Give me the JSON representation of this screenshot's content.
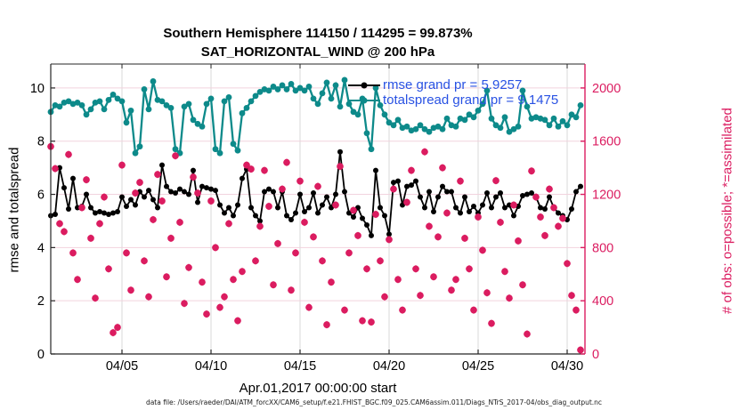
{
  "title": {
    "line1": "Southern Hemisphere 114150 / 114295 = 99.873%",
    "line2": "SAT_HORIZONTAL_WIND @ 200 hPa"
  },
  "legend": [
    {
      "label": "rmse grand pr = 5.9257",
      "series": "rmse"
    },
    {
      "label": "totalspread grand pr = 9.1475",
      "series": "totalspread"
    }
  ],
  "footer": "data file: /Users/raeder/DAI/ATM_forcXX/CAM6_setup/f.e21.FHIST_BGC.f09_025.CAM6assim.011/Diags_NTrS_2017-04/obs_diag_output.nc",
  "colors": {
    "rmse_line": "#000000",
    "totalspread_line": "#0d8a8a",
    "obs_pink": "#db1c60",
    "legend_text_blue": "#2952e3",
    "grid_vertical": "#d8d8d8",
    "grid_horizontal": "#f2d3de",
    "axis_black": "#262626"
  },
  "chart_data": {
    "type": "line",
    "title": "Southern Hemisphere 114150 / 114295 = 99.873%",
    "subtitle": "SAT_HORIZONTAL_WIND @ 200 hPa",
    "x_axis": {
      "label": "Apr.01,2017 00:00:00 start",
      "tick_labels": [
        "04/05",
        "04/10",
        "04/15",
        "04/20",
        "04/25",
        "04/30"
      ],
      "tick_days": [
        4,
        9,
        14,
        19,
        24,
        29
      ],
      "range_days": [
        0,
        30
      ],
      "step_days": 0.25
    },
    "y_left": {
      "label": "rmse and totalspread",
      "ticks": [
        0,
        2,
        4,
        6,
        8,
        10
      ],
      "range": [
        0,
        10.9
      ]
    },
    "y_right": {
      "label": "# of obs: o=possible; *=assimilated",
      "ticks": [
        0,
        400,
        800,
        1200,
        1600,
        2000
      ],
      "range": [
        0,
        2180
      ]
    },
    "grid": true,
    "legend_position": "top-right-inside",
    "series": [
      {
        "name": "rmse",
        "axis": "left",
        "marker": "filled-circle",
        "grand_mean": 5.9257,
        "values": [
          5.2,
          5.25,
          7.0,
          6.25,
          5.45,
          6.6,
          5.5,
          5.55,
          6.0,
          5.5,
          5.3,
          5.35,
          5.3,
          5.25,
          5.3,
          5.35,
          5.9,
          5.55,
          5.8,
          5.6,
          6.1,
          5.9,
          6.15,
          5.8,
          5.5,
          7.1,
          6.3,
          6.1,
          6.05,
          6.2,
          6.1,
          6.0,
          6.9,
          5.7,
          6.3,
          6.25,
          6.2,
          6.15,
          5.6,
          5.3,
          5.5,
          5.2,
          5.6,
          6.6,
          6.95,
          5.5,
          5.2,
          5.0,
          6.1,
          6.2,
          6.1,
          5.5,
          6.1,
          5.2,
          5.05,
          5.3,
          6.0,
          5.35,
          5.5,
          6.05,
          5.3,
          5.6,
          5.9,
          5.5,
          6.0,
          7.6,
          6.1,
          5.3,
          5.15,
          5.5,
          5.1,
          4.85,
          4.45,
          6.9,
          5.5,
          5.2,
          4.5,
          6.45,
          6.5,
          5.6,
          6.3,
          6.35,
          6.5,
          5.9,
          5.5,
          6.1,
          5.35,
          5.9,
          6.3,
          6.1,
          6.1,
          5.5,
          5.3,
          5.9,
          5.35,
          5.55,
          5.3,
          5.6,
          6.05,
          5.5,
          5.9,
          6.05,
          5.5,
          5.6,
          5.2,
          5.55,
          5.95,
          6.0,
          6.05,
          5.9,
          5.5,
          5.45,
          5.9,
          5.5,
          5.3,
          5.2,
          5.05,
          5.45,
          6.1,
          6.3
        ]
      },
      {
        "name": "totalspread",
        "axis": "left",
        "marker": "filled-circle",
        "grand_mean": 9.1475,
        "values": [
          9.1,
          9.35,
          9.3,
          9.45,
          9.5,
          9.4,
          9.45,
          9.35,
          9.0,
          9.2,
          9.45,
          9.5,
          9.2,
          9.55,
          9.75,
          9.6,
          9.5,
          8.7,
          9.15,
          7.55,
          7.8,
          9.95,
          9.2,
          10.25,
          9.55,
          9.5,
          9.35,
          9.25,
          7.7,
          7.55,
          9.3,
          9.4,
          8.8,
          8.65,
          8.55,
          9.4,
          9.6,
          7.7,
          7.55,
          9.5,
          9.65,
          7.9,
          7.65,
          9.05,
          9.25,
          9.5,
          9.7,
          9.85,
          9.95,
          9.9,
          10.05,
          9.95,
          10.1,
          9.95,
          10.15,
          9.9,
          10.0,
          9.9,
          10.05,
          9.6,
          9.4,
          9.8,
          10.2,
          9.6,
          10.1,
          9.3,
          10.3,
          9.4,
          9.1,
          9.0,
          9.6,
          8.3,
          7.7,
          10.0,
          9.35,
          9.0,
          8.7,
          8.6,
          8.8,
          8.5,
          8.55,
          8.4,
          8.45,
          8.6,
          8.45,
          8.35,
          8.5,
          8.55,
          8.45,
          8.85,
          8.6,
          8.55,
          8.85,
          8.8,
          9.0,
          8.9,
          9.15,
          9.4,
          9.9,
          8.85,
          8.6,
          8.5,
          8.9,
          8.35,
          8.45,
          8.55,
          9.9,
          9.3,
          8.85,
          8.9,
          8.85,
          8.8,
          8.6,
          8.85,
          8.55,
          8.75,
          8.6,
          9.0,
          8.9,
          9.35
        ]
      },
      {
        "name": "obs_assimilated",
        "axis": "right",
        "marker": "asterisk",
        "values": [
          1560,
          1394,
          980,
          920,
          1500,
          760,
          560,
          1100,
          1310,
          870,
          420,
          980,
          1180,
          640,
          160,
          200,
          1420,
          760,
          480,
          1210,
          1290,
          700,
          430,
          1010,
          1350,
          1150,
          580,
          870,
          1490,
          990,
          380,
          650,
          1330,
          1210,
          540,
          300,
          1150,
          800,
          350,
          430,
          980,
          560,
          250,
          620,
          1420,
          1390,
          700,
          960,
          1380,
          1110,
          520,
          830,
          1240,
          1440,
          480,
          760,
          1300,
          990,
          350,
          880,
          1260,
          700,
          220,
          540,
          1120,
          1410,
          330,
          760,
          1080,
          890,
          250,
          640,
          240,
          1050,
          700,
          430,
          860,
          1240,
          560,
          330,
          1140,
          1380,
          640,
          440,
          1520,
          960,
          580,
          880,
          1400,
          1060,
          480,
          560,
          1300,
          870,
          640,
          330,
          1030,
          780,
          460,
          230,
          1303,
          990,
          620,
          420,
          1120,
          850,
          520,
          150,
          1376,
          1180,
          1030,
          890,
          1240,
          1100,
          960,
          1020,
          680,
          440,
          330,
          30
        ]
      },
      {
        "name": "obs_possible",
        "axis": "right",
        "marker": "circle-outline",
        "values": "same_as_obs_assimilated",
        "note": "possible counts visually coincide with assimilated (99.873% assimilated)"
      }
    ]
  }
}
